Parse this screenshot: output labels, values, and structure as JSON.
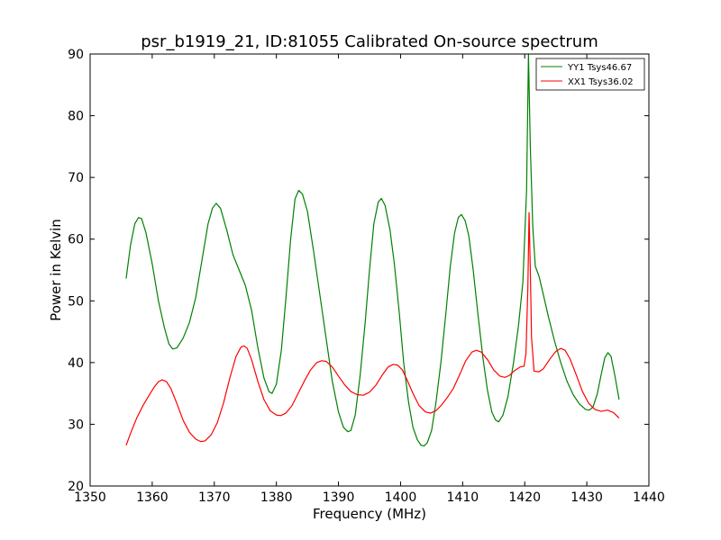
{
  "chart_data": {
    "type": "line",
    "title": "psr_b1919_21, ID:81055 Calibrated On-source spectrum",
    "xlabel": "Frequency (MHz)",
    "ylabel": "Power in Kelvin",
    "xlim": [
      1350,
      1440
    ],
    "ylim": [
      20,
      90
    ],
    "xticks": [
      "1350",
      "1360",
      "1370",
      "1380",
      "1390",
      "1400",
      "1410",
      "1420",
      "1430",
      "1440"
    ],
    "yticks": [
      "20",
      "30",
      "40",
      "50",
      "60",
      "70",
      "80",
      "90"
    ],
    "grid": false,
    "legend_position": "top-right",
    "series": [
      {
        "name": "YY1 Tsys46.67",
        "color": "#008000",
        "points": [
          [
            1355.8,
            53.6
          ],
          [
            1356.5,
            59.0
          ],
          [
            1357.2,
            62.5
          ],
          [
            1357.8,
            63.5
          ],
          [
            1358.3,
            63.3
          ],
          [
            1359.0,
            61.0
          ],
          [
            1360.0,
            56.0
          ],
          [
            1361.0,
            50.0
          ],
          [
            1362.0,
            45.5
          ],
          [
            1362.7,
            43.0
          ],
          [
            1363.3,
            42.2
          ],
          [
            1364.0,
            42.4
          ],
          [
            1365.0,
            44.0
          ],
          [
            1366.0,
            46.5
          ],
          [
            1367.0,
            50.5
          ],
          [
            1368.0,
            56.5
          ],
          [
            1369.0,
            62.5
          ],
          [
            1369.7,
            65.0
          ],
          [
            1370.3,
            65.8
          ],
          [
            1371.0,
            65.0
          ],
          [
            1372.0,
            61.5
          ],
          [
            1373.0,
            57.5
          ],
          [
            1374.0,
            55.0
          ],
          [
            1375.0,
            52.5
          ],
          [
            1376.0,
            48.5
          ],
          [
            1377.0,
            42.5
          ],
          [
            1378.0,
            37.5
          ],
          [
            1378.8,
            35.3
          ],
          [
            1379.3,
            35.0
          ],
          [
            1380.0,
            36.5
          ],
          [
            1380.8,
            42.0
          ],
          [
            1381.5,
            50.0
          ],
          [
            1382.3,
            60.0
          ],
          [
            1383.0,
            66.5
          ],
          [
            1383.6,
            67.9
          ],
          [
            1384.2,
            67.3
          ],
          [
            1385.0,
            64.5
          ],
          [
            1386.0,
            58.0
          ],
          [
            1387.0,
            51.0
          ],
          [
            1388.0,
            44.0
          ],
          [
            1389.0,
            37.0
          ],
          [
            1390.0,
            32.0
          ],
          [
            1390.8,
            29.5
          ],
          [
            1391.5,
            28.8
          ],
          [
            1392.0,
            29.0
          ],
          [
            1392.7,
            31.5
          ],
          [
            1393.5,
            38.0
          ],
          [
            1394.3,
            46.5
          ],
          [
            1395.0,
            55.0
          ],
          [
            1395.7,
            62.5
          ],
          [
            1396.4,
            66.0
          ],
          [
            1396.9,
            66.6
          ],
          [
            1397.5,
            65.5
          ],
          [
            1398.3,
            61.5
          ],
          [
            1399.0,
            56.0
          ],
          [
            1399.8,
            48.0
          ],
          [
            1400.5,
            40.0
          ],
          [
            1401.3,
            33.5
          ],
          [
            1402.0,
            29.5
          ],
          [
            1402.7,
            27.5
          ],
          [
            1403.3,
            26.6
          ],
          [
            1403.8,
            26.5
          ],
          [
            1404.3,
            27.0
          ],
          [
            1405.0,
            29.0
          ],
          [
            1405.7,
            33.5
          ],
          [
            1406.5,
            40.0
          ],
          [
            1407.3,
            48.0
          ],
          [
            1408.0,
            55.5
          ],
          [
            1408.7,
            61.0
          ],
          [
            1409.3,
            63.5
          ],
          [
            1409.8,
            64.0
          ],
          [
            1410.4,
            63.0
          ],
          [
            1411.0,
            60.5
          ],
          [
            1411.7,
            55.0
          ],
          [
            1412.5,
            47.5
          ],
          [
            1413.3,
            40.5
          ],
          [
            1414.0,
            35.5
          ],
          [
            1414.7,
            32.0
          ],
          [
            1415.3,
            30.7
          ],
          [
            1415.8,
            30.4
          ],
          [
            1416.5,
            31.5
          ],
          [
            1417.3,
            34.5
          ],
          [
            1418.2,
            40.0
          ],
          [
            1419.0,
            46.0
          ],
          [
            1419.7,
            53.0
          ],
          [
            1420.3,
            68.0
          ],
          [
            1420.6,
            90.0
          ],
          [
            1420.9,
            75.0
          ],
          [
            1421.3,
            62.0
          ],
          [
            1421.7,
            55.6
          ],
          [
            1422.3,
            54.0
          ],
          [
            1423.0,
            51.0
          ],
          [
            1423.8,
            47.5
          ],
          [
            1424.8,
            43.5
          ],
          [
            1425.8,
            40.0
          ],
          [
            1426.8,
            37.0
          ],
          [
            1427.8,
            34.8
          ],
          [
            1428.8,
            33.3
          ],
          [
            1429.8,
            32.4
          ],
          [
            1430.4,
            32.3
          ],
          [
            1431.0,
            32.8
          ],
          [
            1431.7,
            35.0
          ],
          [
            1432.3,
            38.0
          ],
          [
            1432.9,
            40.8
          ],
          [
            1433.4,
            41.6
          ],
          [
            1433.9,
            41.0
          ],
          [
            1434.5,
            38.0
          ],
          [
            1435.2,
            34.0
          ]
        ]
      },
      {
        "name": "XX1 Tsys36.02",
        "color": "#ff0000",
        "points": [
          [
            1355.8,
            26.6
          ],
          [
            1356.5,
            28.5
          ],
          [
            1357.5,
            31.0
          ],
          [
            1358.5,
            33.0
          ],
          [
            1359.5,
            34.7
          ],
          [
            1360.3,
            36.0
          ],
          [
            1361.0,
            36.9
          ],
          [
            1361.6,
            37.2
          ],
          [
            1362.3,
            36.9
          ],
          [
            1363.0,
            35.8
          ],
          [
            1364.0,
            33.3
          ],
          [
            1365.0,
            30.6
          ],
          [
            1366.0,
            28.7
          ],
          [
            1367.0,
            27.6
          ],
          [
            1367.8,
            27.2
          ],
          [
            1368.5,
            27.3
          ],
          [
            1369.5,
            28.3
          ],
          [
            1370.5,
            30.3
          ],
          [
            1371.5,
            33.5
          ],
          [
            1372.5,
            37.5
          ],
          [
            1373.5,
            41.0
          ],
          [
            1374.3,
            42.5
          ],
          [
            1374.8,
            42.7
          ],
          [
            1375.3,
            42.3
          ],
          [
            1376.0,
            40.5
          ],
          [
            1377.0,
            37.0
          ],
          [
            1378.0,
            34.0
          ],
          [
            1379.0,
            32.2
          ],
          [
            1380.0,
            31.5
          ],
          [
            1380.7,
            31.4
          ],
          [
            1381.5,
            31.8
          ],
          [
            1382.5,
            33.0
          ],
          [
            1383.5,
            35.0
          ],
          [
            1384.5,
            37.0
          ],
          [
            1385.5,
            38.8
          ],
          [
            1386.5,
            40.0
          ],
          [
            1387.3,
            40.3
          ],
          [
            1388.0,
            40.2
          ],
          [
            1389.0,
            39.3
          ],
          [
            1390.0,
            37.8
          ],
          [
            1391.0,
            36.4
          ],
          [
            1392.0,
            35.3
          ],
          [
            1393.0,
            34.8
          ],
          [
            1394.0,
            34.7
          ],
          [
            1395.0,
            35.2
          ],
          [
            1396.0,
            36.3
          ],
          [
            1397.0,
            37.9
          ],
          [
            1398.0,
            39.3
          ],
          [
            1398.8,
            39.7
          ],
          [
            1399.5,
            39.6
          ],
          [
            1400.3,
            38.8
          ],
          [
            1401.0,
            37.3
          ],
          [
            1402.0,
            35.0
          ],
          [
            1403.0,
            33.0
          ],
          [
            1404.0,
            32.0
          ],
          [
            1404.8,
            31.8
          ],
          [
            1405.7,
            32.2
          ],
          [
            1406.5,
            33.0
          ],
          [
            1407.5,
            34.3
          ],
          [
            1408.5,
            35.8
          ],
          [
            1409.5,
            38.0
          ],
          [
            1410.5,
            40.3
          ],
          [
            1411.5,
            41.7
          ],
          [
            1412.2,
            42.0
          ],
          [
            1413.0,
            41.7
          ],
          [
            1414.0,
            40.5
          ],
          [
            1415.0,
            38.8
          ],
          [
            1416.0,
            37.8
          ],
          [
            1416.8,
            37.6
          ],
          [
            1417.5,
            37.9
          ],
          [
            1418.5,
            38.8
          ],
          [
            1419.3,
            39.3
          ],
          [
            1419.9,
            39.4
          ],
          [
            1420.2,
            41.5
          ],
          [
            1420.5,
            52.0
          ],
          [
            1420.7,
            64.3
          ],
          [
            1420.9,
            55.0
          ],
          [
            1421.1,
            44.0
          ],
          [
            1421.5,
            38.6
          ],
          [
            1422.3,
            38.5
          ],
          [
            1423.0,
            39.0
          ],
          [
            1424.0,
            40.5
          ],
          [
            1425.0,
            41.8
          ],
          [
            1425.8,
            42.3
          ],
          [
            1426.5,
            42.0
          ],
          [
            1427.3,
            40.6
          ],
          [
            1428.3,
            38.0
          ],
          [
            1429.3,
            35.3
          ],
          [
            1430.3,
            33.4
          ],
          [
            1431.3,
            32.4
          ],
          [
            1432.3,
            32.1
          ],
          [
            1433.3,
            32.3
          ],
          [
            1434.3,
            31.9
          ],
          [
            1435.2,
            31.0
          ]
        ]
      }
    ]
  }
}
